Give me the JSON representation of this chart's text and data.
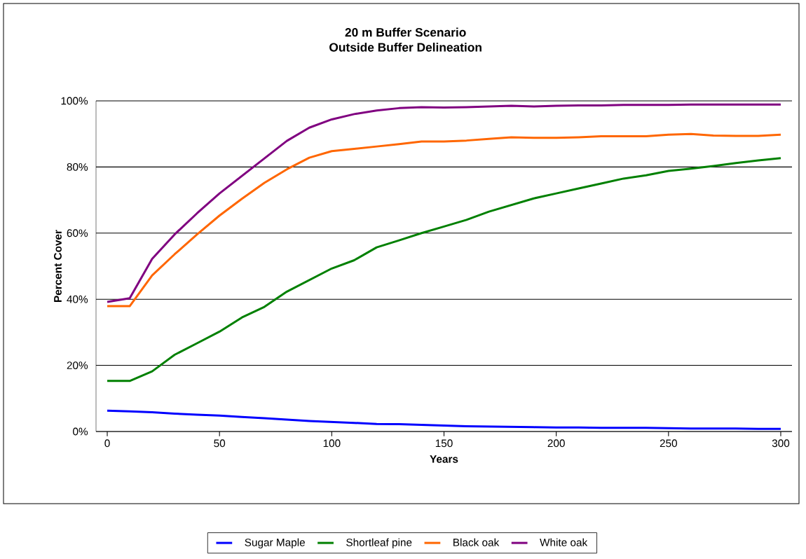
{
  "chart_data": {
    "type": "line",
    "title": "20 m Buffer Scenario",
    "subtitle": "Outside Buffer Delineation",
    "xlabel": "Years",
    "ylabel": "Percent Cover",
    "x": [
      0,
      10,
      20,
      30,
      40,
      50,
      60,
      70,
      80,
      90,
      100,
      110,
      120,
      130,
      140,
      150,
      160,
      170,
      180,
      190,
      200,
      210,
      220,
      230,
      240,
      250,
      260,
      270,
      280,
      290,
      300
    ],
    "series": [
      {
        "name": "Sugar Maple",
        "color": "#0000ff",
        "values": [
          6.3,
          6.1,
          5.8,
          5.4,
          5.1,
          4.8,
          4.4,
          4.0,
          3.6,
          3.2,
          2.9,
          2.6,
          2.3,
          2.2,
          2.0,
          1.8,
          1.6,
          1.5,
          1.4,
          1.3,
          1.2,
          1.2,
          1.1,
          1.1,
          1.1,
          1.0,
          0.9,
          0.9,
          0.9,
          0.8,
          0.8
        ]
      },
      {
        "name": "Shortleaf pine",
        "color": "#008000",
        "values": [
          15.3,
          15.3,
          18.2,
          23.2,
          26.7,
          30.2,
          34.5,
          37.7,
          42.3,
          45.8,
          49.3,
          51.8,
          55.7,
          57.8,
          60.0,
          62,
          64,
          66.5,
          68.5,
          70.5,
          72,
          73.5,
          75,
          76.5,
          77.5,
          78.8,
          79.5,
          80.3,
          81.2,
          82,
          82.7
        ]
      },
      {
        "name": "Black oak",
        "color": "#ff6600",
        "values": [
          37.9,
          37.9,
          47.2,
          53.6,
          59.6,
          65.3,
          70.4,
          75.2,
          79.3,
          82.8,
          84.8,
          85.5,
          86.2,
          86.9,
          87.7,
          87.7,
          88,
          88.5,
          89,
          88.8,
          88.8,
          89,
          89.3,
          89.3,
          89.3,
          89.8,
          90,
          89.5,
          89.4,
          89.4,
          89.8
        ]
      },
      {
        "name": "White oak",
        "color": "#800080",
        "values": [
          39.2,
          40.3,
          52.2,
          59.6,
          66,
          72,
          77.3,
          82.6,
          87.9,
          91.9,
          94.4,
          96.0,
          97.1,
          97.8,
          98.1,
          98,
          98.1,
          98.3,
          98.5,
          98.3,
          98.5,
          98.6,
          98.6,
          98.8,
          98.8,
          98.8,
          98.9,
          98.9,
          98.9,
          98.9,
          98.9
        ]
      }
    ],
    "xlim": [
      -5,
      305
    ],
    "xticks": [
      0,
      50,
      100,
      150,
      200,
      250,
      300
    ],
    "ylim": [
      0,
      100
    ],
    "yticks": [
      {
        "value": 0,
        "label": "0%"
      },
      {
        "value": 20,
        "label": "20%"
      },
      {
        "value": 40,
        "label": "40%"
      },
      {
        "value": 60,
        "label": "60%"
      },
      {
        "value": 80,
        "label": "80%"
      },
      {
        "value": 100,
        "label": "100%"
      }
    ],
    "grid": "y",
    "legend": "bottom",
    "marker": "none",
    "line_style": "solid"
  }
}
